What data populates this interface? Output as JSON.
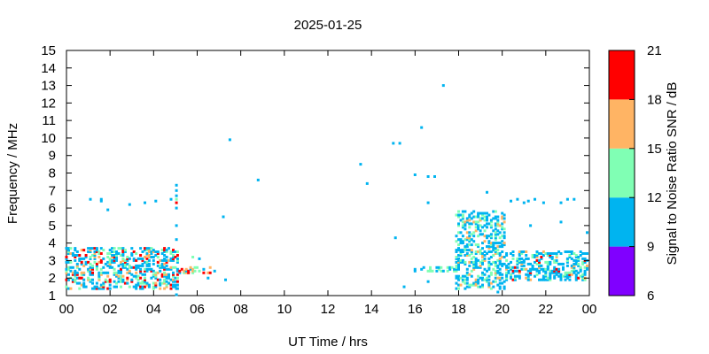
{
  "chart_data": {
    "type": "heatmap",
    "title": "2025-01-25",
    "xlabel": "UT Time / hrs",
    "ylabel": "Frequency / MHz",
    "colorbar_label": "Signal to Noise Ratio SNR / dB",
    "xlim": [
      0,
      24
    ],
    "ylim": [
      1,
      15
    ],
    "x_ticks": [
      "00",
      "02",
      "04",
      "06",
      "08",
      "10",
      "12",
      "14",
      "16",
      "18",
      "20",
      "22",
      "00"
    ],
    "y_ticks": [
      "1",
      "2",
      "3",
      "4",
      "5",
      "6",
      "7",
      "8",
      "9",
      "10",
      "11",
      "12",
      "13",
      "14",
      "15"
    ],
    "colorbar_ticks": [
      "6",
      "9",
      "12",
      "15",
      "18",
      "21"
    ],
    "colorbar": [
      {
        "min": 6,
        "max": 9,
        "color": "#8000ff"
      },
      {
        "min": 9,
        "max": 12,
        "color": "#00b4f0"
      },
      {
        "min": 12,
        "max": 15,
        "color": "#80ffb4"
      },
      {
        "min": 15,
        "max": 18,
        "color": "#ffb464"
      },
      {
        "min": 18,
        "max": 21,
        "color": "#ff0000"
      }
    ],
    "clusters": [
      {
        "t0": 0.0,
        "t1": 5.1,
        "f0": 1.4,
        "f1": 3.8,
        "mix": [
          0.55,
          0.2,
          0.1,
          0.15
        ]
      },
      {
        "t0": 5.1,
        "t1": 6.8,
        "f0": 2.3,
        "f1": 2.6,
        "mix": [
          0.2,
          0.2,
          0.2,
          0.4
        ]
      },
      {
        "t0": 15.9,
        "t1": 18.0,
        "f0": 2.4,
        "f1": 2.6,
        "mix": [
          0.5,
          0.5,
          0.0,
          0.0
        ]
      },
      {
        "t0": 17.9,
        "t1": 20.2,
        "f0": 1.4,
        "f1": 5.8,
        "mix": [
          0.65,
          0.25,
          0.1,
          0.0
        ]
      },
      {
        "t0": 20.2,
        "t1": 24.0,
        "f0": 1.9,
        "f1": 3.6,
        "mix": [
          0.7,
          0.2,
          0.05,
          0.05
        ]
      }
    ],
    "points": [
      {
        "t": 1.1,
        "f": 6.5,
        "snr": 10
      },
      {
        "t": 1.6,
        "f": 6.4,
        "snr": 10
      },
      {
        "t": 1.6,
        "f": 6.5,
        "snr": 10
      },
      {
        "t": 1.9,
        "f": 5.9,
        "snr": 10
      },
      {
        "t": 2.9,
        "f": 6.2,
        "snr": 10
      },
      {
        "t": 3.6,
        "f": 6.3,
        "snr": 10
      },
      {
        "t": 4.1,
        "f": 6.4,
        "snr": 10
      },
      {
        "t": 4.8,
        "f": 6.5,
        "snr": 10
      },
      {
        "t": 5.05,
        "f": 7.3,
        "snr": 10
      },
      {
        "t": 5.05,
        "f": 7.0,
        "snr": 10
      },
      {
        "t": 5.05,
        "f": 6.7,
        "snr": 10
      },
      {
        "t": 5.05,
        "f": 6.5,
        "snr": 13
      },
      {
        "t": 5.05,
        "f": 6.3,
        "snr": 19
      },
      {
        "t": 5.05,
        "f": 6.0,
        "snr": 10
      },
      {
        "t": 5.05,
        "f": 5.0,
        "snr": 10
      },
      {
        "t": 5.05,
        "f": 4.2,
        "snr": 10
      },
      {
        "t": 5.05,
        "f": 1.4,
        "snr": 10
      },
      {
        "t": 5.05,
        "f": 1.05,
        "snr": 10
      },
      {
        "t": 5.8,
        "f": 3.2,
        "snr": 13
      },
      {
        "t": 6.1,
        "f": 3.1,
        "snr": 10
      },
      {
        "t": 6.5,
        "f": 2.0,
        "snr": 10
      },
      {
        "t": 7.2,
        "f": 5.5,
        "snr": 10
      },
      {
        "t": 7.3,
        "f": 1.9,
        "snr": 10
      },
      {
        "t": 7.5,
        "f": 9.9,
        "snr": 10
      },
      {
        "t": 8.8,
        "f": 7.6,
        "snr": 10
      },
      {
        "t": 13.5,
        "f": 8.5,
        "snr": 10
      },
      {
        "t": 13.8,
        "f": 7.4,
        "snr": 10
      },
      {
        "t": 15.0,
        "f": 9.7,
        "snr": 10
      },
      {
        "t": 15.3,
        "f": 9.7,
        "snr": 10
      },
      {
        "t": 15.1,
        "f": 4.3,
        "snr": 10
      },
      {
        "t": 15.5,
        "f": 1.5,
        "snr": 10
      },
      {
        "t": 16.0,
        "f": 7.9,
        "snr": 10
      },
      {
        "t": 16.3,
        "f": 10.6,
        "snr": 10
      },
      {
        "t": 16.6,
        "f": 7.8,
        "snr": 10
      },
      {
        "t": 16.9,
        "f": 7.8,
        "snr": 10
      },
      {
        "t": 16.6,
        "f": 6.3,
        "snr": 10
      },
      {
        "t": 16.6,
        "f": 1.8,
        "snr": 10
      },
      {
        "t": 17.3,
        "f": 13.0,
        "snr": 10
      },
      {
        "t": 19.3,
        "f": 6.9,
        "snr": 10
      },
      {
        "t": 20.4,
        "f": 6.4,
        "snr": 10
      },
      {
        "t": 20.7,
        "f": 6.5,
        "snr": 10
      },
      {
        "t": 21.0,
        "f": 6.3,
        "snr": 10
      },
      {
        "t": 21.2,
        "f": 6.4,
        "snr": 10
      },
      {
        "t": 21.5,
        "f": 6.5,
        "snr": 10
      },
      {
        "t": 21.9,
        "f": 6.3,
        "snr": 10
      },
      {
        "t": 22.7,
        "f": 6.3,
        "snr": 10
      },
      {
        "t": 23.0,
        "f": 6.5,
        "snr": 10
      },
      {
        "t": 23.3,
        "f": 6.5,
        "snr": 10
      },
      {
        "t": 21.3,
        "f": 5.0,
        "snr": 10
      },
      {
        "t": 22.7,
        "f": 5.2,
        "snr": 10
      },
      {
        "t": 23.9,
        "f": 4.6,
        "snr": 10
      },
      {
        "t": 19.8,
        "f": 1.2,
        "snr": 10
      },
      {
        "t": 21.2,
        "f": 1.9,
        "snr": 10
      }
    ]
  }
}
